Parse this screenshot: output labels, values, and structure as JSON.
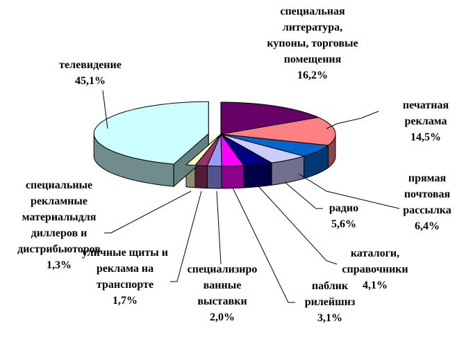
{
  "chart_data": {
    "type": "pie3d",
    "categories": [
      "специальная литература, купоны, торговые помещения",
      "печатная реклама",
      "прямая почтовая рассылка",
      "радио",
      "каталоги, справочники",
      "паблик рилейшнз",
      "специализированные выставки",
      "уличные щиты и реклама на транспорте",
      "специальные рекламные материалыдля диллеров и дистрибьюторов",
      "телевидение"
    ],
    "values": [
      16.2,
      14.5,
      6.4,
      5.6,
      4.1,
      3.1,
      2.0,
      1.7,
      1.3,
      45.1
    ],
    "value_labels": [
      "16,2%",
      "14,5%",
      "6,4%",
      "5,6%",
      "4,1%",
      "3,1%",
      "2,0%",
      "1,7%",
      "1,3%",
      "45,1%"
    ],
    "colors": [
      "#660066",
      "#ff8080",
      "#0066cc",
      "#ccccff",
      "#000080",
      "#ff00ff",
      "#9999ff",
      "#993366",
      "#ffffcc",
      "#ccffff"
    ]
  }
}
